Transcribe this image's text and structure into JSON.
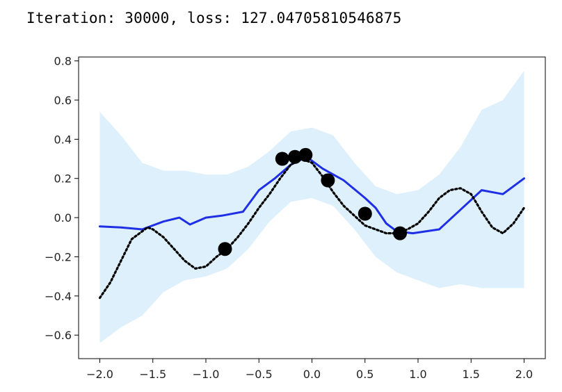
{
  "heading": {
    "iteration_label": "Iteration:",
    "iteration": "30000",
    "loss_label": "loss:",
    "loss": "127.04705810546875",
    "text": "Iteration: 30000, loss: 127.04705810546875"
  },
  "chart_data": {
    "type": "line",
    "title": "",
    "xlabel": "",
    "ylabel": "",
    "xlim": [
      -2.2,
      2.2
    ],
    "ylim": [
      -0.72,
      0.82
    ],
    "xticks": [
      -2.0,
      -1.5,
      -1.0,
      -0.5,
      0.0,
      0.5,
      1.0,
      1.5,
      2.0
    ],
    "xtick_labels": [
      "−2.0",
      "−1.5",
      "−1.0",
      "−0.5",
      "0.0",
      "0.5",
      "1.0",
      "1.5",
      "2.0"
    ],
    "yticks": [
      -0.6,
      -0.4,
      -0.2,
      0.0,
      0.2,
      0.4,
      0.6,
      0.8
    ],
    "ytick_labels": [
      "−0.6",
      "−0.4",
      "−0.2",
      "0.0",
      "0.2",
      "0.4",
      "0.6",
      "0.8"
    ],
    "grid": false,
    "legend": "none",
    "colors": {
      "mean": "#1f2fe6",
      "band": "#ddf0fb",
      "truth": "#000000",
      "observed": "#000000"
    },
    "uncertainty_band": {
      "x": [
        -2.0,
        -1.8,
        -1.6,
        -1.4,
        -1.2,
        -1.0,
        -0.8,
        -0.6,
        -0.4,
        -0.2,
        0.0,
        0.2,
        0.4,
        0.6,
        0.8,
        1.0,
        1.2,
        1.4,
        1.6,
        1.8,
        2.0
      ],
      "upper": [
        0.54,
        0.42,
        0.28,
        0.24,
        0.24,
        0.22,
        0.22,
        0.26,
        0.34,
        0.44,
        0.46,
        0.42,
        0.28,
        0.16,
        0.12,
        0.14,
        0.22,
        0.36,
        0.55,
        0.6,
        0.75
      ],
      "lower": [
        -0.64,
        -0.56,
        -0.5,
        -0.38,
        -0.32,
        -0.3,
        -0.26,
        -0.16,
        -0.02,
        0.08,
        0.1,
        0.06,
        -0.06,
        -0.2,
        -0.28,
        -0.32,
        -0.36,
        -0.34,
        -0.36,
        -0.36,
        -0.36
      ]
    },
    "mean_line": {
      "x": [
        -2.0,
        -1.8,
        -1.6,
        -1.4,
        -1.25,
        -1.15,
        -1.0,
        -0.85,
        -0.65,
        -0.5,
        -0.35,
        -0.2,
        -0.05,
        0.1,
        0.3,
        0.5,
        0.6,
        0.7,
        0.8,
        0.95,
        1.2,
        1.4,
        1.6,
        1.8,
        2.0
      ],
      "y": [
        -0.045,
        -0.05,
        -0.06,
        -0.02,
        0.0,
        -0.035,
        0.0,
        0.01,
        0.03,
        0.14,
        0.2,
        0.27,
        0.31,
        0.25,
        0.19,
        0.1,
        0.05,
        -0.03,
        -0.07,
        -0.08,
        -0.06,
        0.04,
        0.14,
        0.12,
        0.2
      ]
    },
    "true_function": {
      "x": [
        -2.0,
        -1.9,
        -1.8,
        -1.7,
        -1.6,
        -1.55,
        -1.5,
        -1.4,
        -1.3,
        -1.2,
        -1.1,
        -1.0,
        -0.9,
        -0.8,
        -0.7,
        -0.6,
        -0.5,
        -0.4,
        -0.3,
        -0.2,
        -0.1,
        0.0,
        0.1,
        0.2,
        0.3,
        0.4,
        0.5,
        0.6,
        0.7,
        0.8,
        0.9,
        1.0,
        1.1,
        1.2,
        1.3,
        1.4,
        1.5,
        1.6,
        1.7,
        1.8,
        1.9,
        2.0
      ],
      "y": [
        -0.41,
        -0.33,
        -0.22,
        -0.11,
        -0.07,
        -0.05,
        -0.06,
        -0.1,
        -0.16,
        -0.22,
        -0.26,
        -0.25,
        -0.2,
        -0.16,
        -0.1,
        -0.03,
        0.05,
        0.12,
        0.2,
        0.27,
        0.3,
        0.28,
        0.21,
        0.13,
        0.06,
        0.01,
        -0.04,
        -0.06,
        -0.08,
        -0.08,
        -0.06,
        -0.03,
        0.03,
        0.1,
        0.14,
        0.15,
        0.12,
        0.03,
        -0.05,
        -0.08,
        -0.03,
        0.05
      ]
    },
    "observed_points": {
      "x": [
        -0.82,
        -0.28,
        -0.16,
        -0.06,
        0.15,
        0.5,
        0.83
      ],
      "y": [
        -0.16,
        0.3,
        0.31,
        0.32,
        0.19,
        0.02,
        -0.08
      ]
    }
  }
}
